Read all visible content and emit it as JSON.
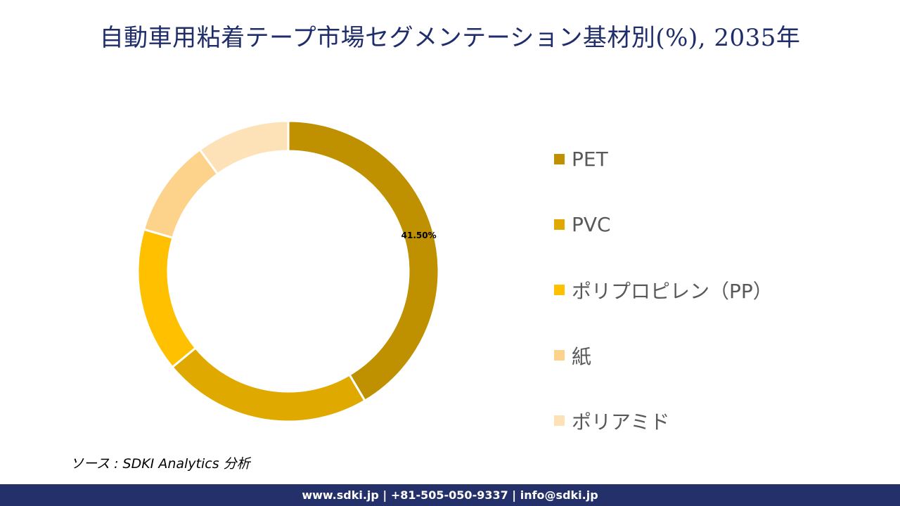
{
  "title": "自動車用粘着テープ市場セグメンテーション基材別(%), 2035年",
  "chart_data": {
    "type": "pie",
    "style": "donut",
    "categories": [
      "PET",
      "PVC",
      "ポリプロピレン（PP）",
      "紙",
      "ポリアミド"
    ],
    "values": [
      41.5,
      22.5,
      15.5,
      10.5,
      10.0
    ],
    "colors": [
      "#bf9000",
      "#e0a900",
      "#ffc000",
      "#fdd28a",
      "#fde2b8"
    ],
    "data_labels": [
      "41.50%",
      "",
      "",
      "",
      ""
    ],
    "legend_position": "right"
  },
  "source": "ソース : SDKI Analytics 分析",
  "footer": "www.sdki.jp | +81-505-050-9337 | info@sdki.jp"
}
